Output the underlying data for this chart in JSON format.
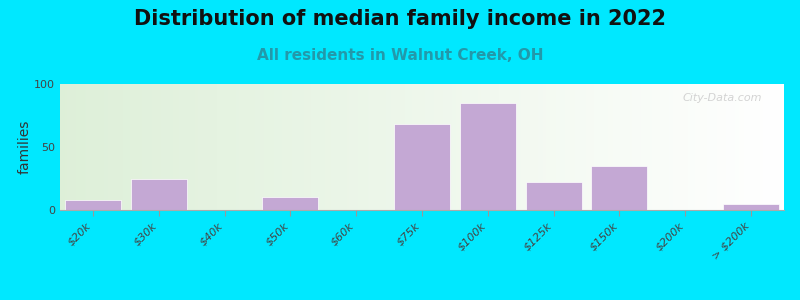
{
  "title": "Distribution of median family income in 2022",
  "subtitle": "All residents in Walnut Creek, OH",
  "ylabel": "families",
  "categories": [
    "$20k",
    "$30k",
    "$40k",
    "$50k",
    "$60k",
    "$75k",
    "$100k",
    "$125k",
    "$150k",
    "$200k",
    "> $200k"
  ],
  "values": [
    8,
    25,
    0,
    10,
    0,
    68,
    85,
    22,
    35,
    0,
    5
  ],
  "bar_color": "#c4a8d4",
  "bar_edge_color": "#ffffff",
  "ylim": [
    0,
    100
  ],
  "yticks": [
    0,
    50,
    100
  ],
  "bg_outer": "#00e8ff",
  "watermark": "City-Data.com",
  "title_fontsize": 15,
  "subtitle_fontsize": 11,
  "ylabel_fontsize": 10,
  "tick_fontsize": 8
}
